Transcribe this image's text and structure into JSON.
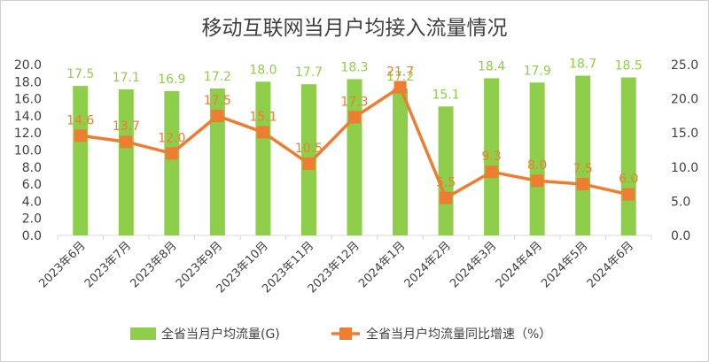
{
  "chart_data": {
    "type": "bar",
    "title": "移动互联网当月户均接入流量情况",
    "categories": [
      "2023年6月",
      "2023年7月",
      "2023年8月",
      "2023年9月",
      "2023年10月",
      "2023年11月",
      "2023年12月",
      "2024年1月",
      "2024年2月",
      "2024年3月",
      "2024年4月",
      "2024年5月",
      "2024年6月"
    ],
    "series": [
      {
        "name": "全省当月户均流量(G)",
        "chart_type": "bar",
        "axis": "left",
        "color": "#8fce4a",
        "values": [
          17.5,
          17.1,
          16.9,
          17.2,
          18.0,
          17.7,
          18.3,
          17.2,
          15.1,
          18.4,
          17.9,
          18.7,
          18.5
        ],
        "labels": [
          "17.5",
          "17.1",
          "16.9",
          "17.2",
          "18.0",
          "17.7",
          "18.3",
          "17.2",
          "15.1",
          "18.4",
          "17.9",
          "18.7",
          "18.5"
        ]
      },
      {
        "name": "全省当月户均流量同比增速（%）",
        "chart_type": "line",
        "axis": "right",
        "color": "#ed7d31",
        "marker": "square",
        "values": [
          14.6,
          13.7,
          12.0,
          17.5,
          15.1,
          10.5,
          17.3,
          21.7,
          5.5,
          9.3,
          8.0,
          7.5,
          6.0
        ],
        "labels": [
          "14.6",
          "13.7",
          "12.0",
          "17.5",
          "15.1",
          "10.5",
          "17.3",
          "21.7",
          "5.5",
          "9.3",
          "8.0",
          "7.5",
          "6.0"
        ]
      }
    ],
    "y_left": {
      "lim": [
        0,
        20
      ],
      "ticks": [
        "0.0",
        "2.0",
        "4.0",
        "6.0",
        "8.0",
        "10.0",
        "12.0",
        "14.0",
        "16.0",
        "18.0",
        "20.0"
      ]
    },
    "y_right": {
      "lim": [
        0,
        25
      ],
      "ticks": [
        "0.0",
        "5.0",
        "10.0",
        "15.0",
        "20.0",
        "25.0"
      ]
    },
    "grid": false,
    "legend": "bottom-center"
  }
}
